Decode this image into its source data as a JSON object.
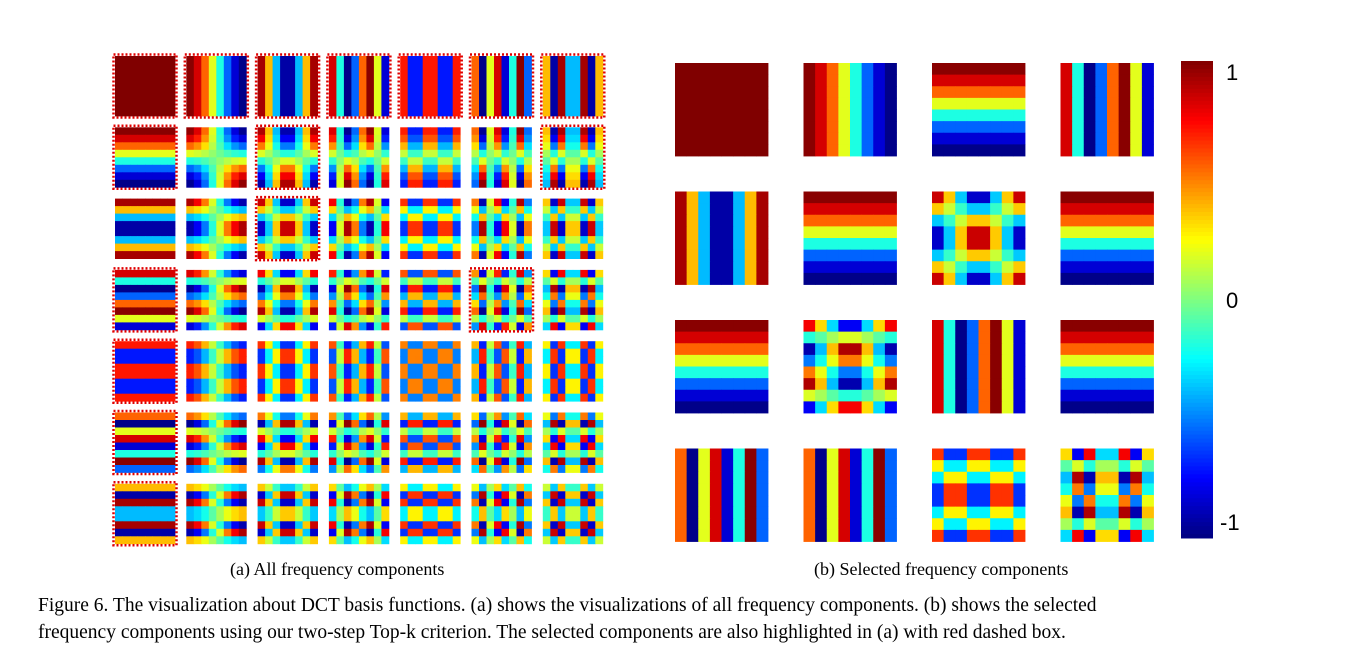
{
  "figure": {
    "subcaption_a": "(a)  All frequency components",
    "subcaption_b": "(b)  Selected frequency components",
    "caption_line1": "Figure 6. The visualization about DCT basis functions. (a) shows the visualizations of all frequency components. (b) shows the selected",
    "caption_line2": "frequency components using our two-step Top-k criterion. The selected components are also highlighted in (a) with red dashed box."
  },
  "panel_a": {
    "grid_size": 7,
    "highlight_color": "#e00000",
    "highlighted": [
      [
        0,
        0
      ],
      [
        0,
        1
      ],
      [
        0,
        2
      ],
      [
        0,
        3
      ],
      [
        0,
        4
      ],
      [
        0,
        5
      ],
      [
        0,
        6
      ],
      [
        1,
        0
      ],
      [
        1,
        2
      ],
      [
        1,
        6
      ],
      [
        2,
        2
      ],
      [
        3,
        0
      ],
      [
        3,
        5
      ],
      [
        4,
        0
      ],
      [
        5,
        0
      ],
      [
        6,
        0
      ]
    ]
  },
  "panel_b": {
    "components": [
      [
        0,
        0
      ],
      [
        0,
        1
      ],
      [
        1,
        0
      ],
      [
        0,
        3
      ],
      [
        0,
        2
      ],
      [
        1,
        0
      ],
      [
        2,
        2
      ],
      [
        1,
        0
      ],
      [
        1,
        0
      ],
      [
        3,
        2
      ],
      [
        0,
        3
      ],
      [
        1,
        0
      ],
      [
        0,
        5
      ],
      [
        0,
        5
      ],
      [
        2,
        4
      ],
      [
        3,
        6
      ]
    ]
  },
  "colorbar": {
    "colormap": "jet",
    "max_label": "1",
    "mid_label": "0",
    "min_label": "-1"
  }
}
